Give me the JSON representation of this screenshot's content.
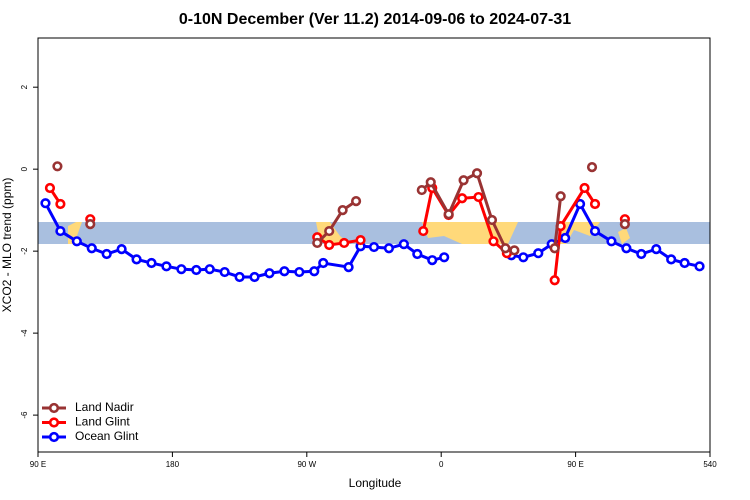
{
  "chart_data": {
    "type": "line",
    "title": "0-10N December (Ver 11.2)   2014-09-06 to 2024-07-31",
    "x_label": "Longitude",
    "y_label": "XCO2 - MLO trend (ppm)",
    "xlim": [
      90,
      540
    ],
    "ylim": [
      -6.9,
      3.2
    ],
    "xticks": [
      {
        "value": 90,
        "label": "90 E"
      },
      180,
      {
        "value": 270,
        "label": "90 W"
      },
      {
        "value": 360,
        "label": "0"
      },
      {
        "value": 450,
        "label": "90 E"
      },
      540
    ],
    "yticks": [
      2,
      0,
      -2,
      -4,
      -6
    ],
    "legend": "bottom-left",
    "series": [
      {
        "name": "Land Nadir",
        "color": "#993333",
        "x": [
          103,
          114,
          125,
          200,
          277,
          285,
          294,
          303,
          325,
          347,
          353,
          365,
          375,
          384,
          394,
          403,
          409,
          420,
          436,
          440,
          450,
          461,
          470,
          483
        ],
        "values": [
          0.07,
          null,
          -1.34,
          null,
          -1.8,
          -1.51,
          -1.0,
          -0.78,
          null,
          -0.51,
          -0.32,
          -1.1,
          -0.27,
          -0.1,
          -1.24,
          -1.93,
          -1.98,
          null,
          -1.93,
          -0.66,
          null,
          0.05,
          null,
          -1.34
        ]
      },
      {
        "name": "Land Glint",
        "color": "#ff0000",
        "x": [
          98,
          105,
          115,
          125,
          200,
          277,
          285,
          295,
          306,
          325,
          348,
          354,
          365,
          374,
          385,
          395,
          404,
          420,
          436,
          440,
          456,
          463,
          470,
          483
        ],
        "values": [
          -0.46,
          -0.85,
          null,
          -1.22,
          null,
          -1.66,
          -1.85,
          -1.8,
          -1.73,
          null,
          -1.51,
          -0.46,
          -1.12,
          -0.71,
          -0.68,
          -1.76,
          -2.05,
          null,
          -2.71,
          -1.39,
          -0.46,
          -0.85,
          null,
          -1.22
        ]
      },
      {
        "name": "Ocean Glint",
        "color": "#0000ff",
        "x": [
          95,
          105,
          116,
          126,
          136,
          146,
          156,
          166,
          176,
          186,
          196,
          205,
          215,
          225,
          235,
          245,
          255,
          265,
          275,
          281,
          298,
          306,
          315,
          325,
          335,
          344,
          354,
          362,
          385,
          407,
          415,
          425,
          434,
          443,
          453,
          463,
          474,
          484,
          494,
          504,
          514,
          523,
          533
        ],
        "values": [
          -0.83,
          -1.51,
          -1.76,
          -1.93,
          -2.07,
          -1.95,
          -2.2,
          -2.29,
          -2.37,
          -2.44,
          -2.46,
          -2.44,
          -2.51,
          -2.63,
          -2.63,
          -2.54,
          -2.49,
          -2.51,
          -2.49,
          -2.29,
          -2.39,
          -1.88,
          -1.9,
          -1.93,
          -1.83,
          -2.07,
          -2.22,
          -2.15,
          null,
          -2.1,
          -2.15,
          -2.05,
          -1.83,
          -1.68,
          -0.85,
          -1.51,
          -1.76,
          -1.93,
          -2.07,
          -1.95,
          -2.2,
          -2.29,
          -2.37
        ]
      }
    ]
  }
}
